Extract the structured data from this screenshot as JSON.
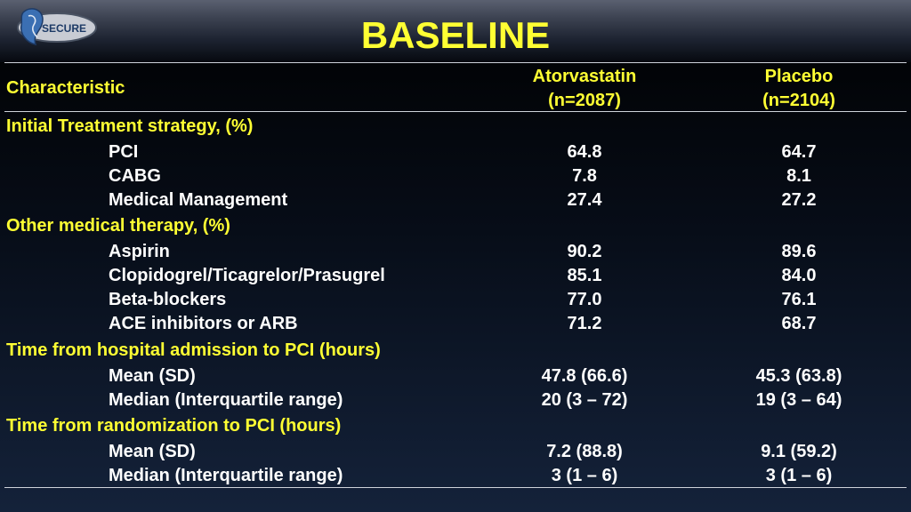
{
  "title": "BASELINE",
  "logo_text": "SECURE",
  "header": {
    "characteristic": "Characteristic",
    "atorvastatin_name": "Atorvastatin",
    "atorvastatin_n": "(n=2087)",
    "placebo_name": "Placebo",
    "placebo_n": "(n=2104)"
  },
  "sections": [
    {
      "label": "Initial Treatment strategy, (%)",
      "rows": [
        {
          "label": "PCI",
          "atorvastatin": "64.8",
          "placebo": "64.7"
        },
        {
          "label": "CABG",
          "atorvastatin": "7.8",
          "placebo": "8.1"
        },
        {
          "label": "Medical Management",
          "atorvastatin": "27.4",
          "placebo": "27.2"
        }
      ]
    },
    {
      "label": "Other medical therapy, (%)",
      "rows": [
        {
          "label": "Aspirin",
          "atorvastatin": "90.2",
          "placebo": "89.6"
        },
        {
          "label": "Clopidogrel/Ticagrelor/Prasugrel",
          "atorvastatin": "85.1",
          "placebo": "84.0"
        },
        {
          "label": "Beta-blockers",
          "atorvastatin": "77.0",
          "placebo": "76.1"
        },
        {
          "label": "ACE inhibitors or ARB",
          "atorvastatin": "71.2",
          "placebo": "68.7"
        }
      ]
    },
    {
      "label": "Time from hospital admission to PCI (hours)",
      "rows": [
        {
          "label": "Mean (SD)",
          "atorvastatin": "47.8 (66.6)",
          "placebo": "45.3 (63.8)"
        },
        {
          "label": "Median (Interquartile range)",
          "atorvastatin": "20 (3 – 72)",
          "placebo": "19 (3 – 64)"
        }
      ]
    },
    {
      "label": "Time from randomization to PCI (hours)",
      "rows": [
        {
          "label": "Mean (SD)",
          "atorvastatin": "7.2 (88.8)",
          "placebo": "9.1 (59.2)"
        },
        {
          "label": "Median (Interquartile range)",
          "atorvastatin": "3 (1 – 6)",
          "placebo": "3 (1 – 6)"
        }
      ]
    }
  ],
  "colors": {
    "title": "#ffff33",
    "section": "#ffff33",
    "text": "#ffffff",
    "background": "#0b1424"
  }
}
